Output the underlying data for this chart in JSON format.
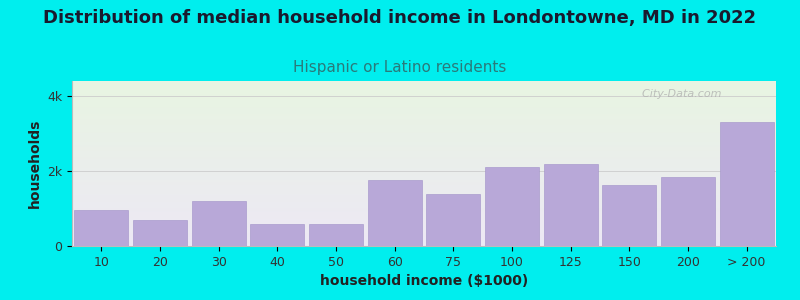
{
  "title": "Distribution of median household income in Londontowne, MD in 2022",
  "subtitle": "Hispanic or Latino residents",
  "xlabel": "household income ($1000)",
  "ylabel": "households",
  "background_outer": "#00EEEE",
  "background_inner_top": "#e8f5e2",
  "background_inner_bottom": "#ede8f5",
  "bar_color": "#b8a8d8",
  "bar_edge_color": "#a090c8",
  "categories": [
    "10",
    "20",
    "30",
    "40",
    "50",
    "60",
    "75",
    "100",
    "125",
    "150",
    "200",
    "> 200"
  ],
  "values": [
    950,
    700,
    1200,
    600,
    580,
    1750,
    1400,
    2100,
    2200,
    1620,
    1850,
    3300
  ],
  "ylim": [
    0,
    4400
  ],
  "yticks": [
    0,
    2000,
    4000
  ],
  "ytick_labels": [
    "0",
    "2k",
    "4k"
  ],
  "title_fontsize": 13,
  "subtitle_fontsize": 11,
  "axis_label_fontsize": 10,
  "tick_fontsize": 9,
  "title_color": "#1a1a2e",
  "subtitle_color": "#2a7a7a",
  "watermark": "  City-Data.com"
}
